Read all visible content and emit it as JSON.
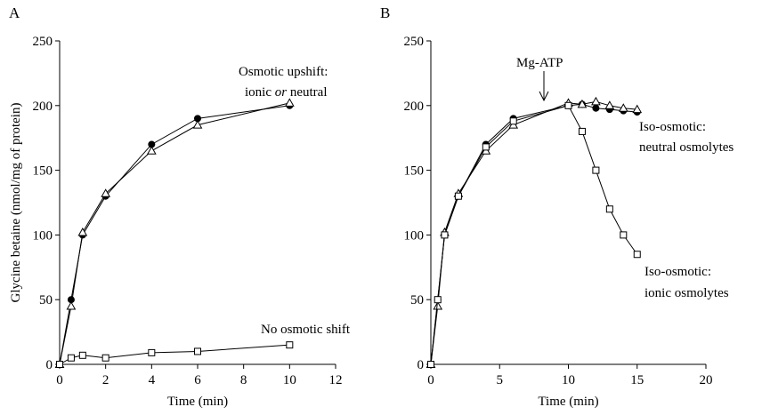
{
  "chart_data": [
    {
      "type": "line",
      "panel": "A",
      "y_label": "Glycine betaine (nmol/mg of protein)",
      "x_label": "Time (min)",
      "x": [
        0,
        0.5,
        1,
        2,
        4,
        6,
        10
      ],
      "xlim": [
        0,
        12
      ],
      "xticks": [
        0,
        2,
        4,
        6,
        8,
        10,
        12
      ],
      "ylim": [
        0,
        250
      ],
      "yticks": [
        0,
        50,
        100,
        150,
        200,
        250
      ],
      "series": [
        {
          "marker": "circle",
          "color": "#000000",
          "values": [
            0,
            50,
            100,
            130,
            170,
            190,
            200
          ]
        },
        {
          "marker": "triangle",
          "color": "#000000",
          "values": [
            0,
            45,
            102,
            132,
            165,
            185,
            202
          ]
        },
        {
          "marker": "square",
          "color": "#000000",
          "values": [
            0,
            5,
            7,
            5,
            9,
            10,
            15
          ]
        }
      ],
      "annotations": [
        [
          "Osmotic upshift:"
        ],
        [
          "ionic ",
          "or",
          " neutral"
        ],
        [
          "No osmotic shift"
        ]
      ]
    },
    {
      "type": "line",
      "panel": "B",
      "x_label": "Time (min)",
      "x": [
        0,
        0.5,
        1,
        2,
        4,
        6,
        10,
        11,
        12,
        13,
        14,
        15
      ],
      "xlim": [
        0,
        20
      ],
      "xticks": [
        0,
        5,
        10,
        15,
        20
      ],
      "ylim": [
        0,
        250
      ],
      "yticks": [
        0,
        50,
        100,
        150,
        200,
        250
      ],
      "series": [
        {
          "marker": "circle",
          "color": "#000000",
          "values": [
            0,
            50,
            100,
            130,
            170,
            190,
            200,
            201,
            198,
            197,
            196,
            195
          ]
        },
        {
          "marker": "triangle",
          "color": "#000000",
          "values": [
            0,
            45,
            102,
            132,
            165,
            185,
            202,
            201,
            203,
            200,
            198,
            197
          ]
        },
        {
          "marker": "square",
          "color": "#000000",
          "values": [
            0,
            50,
            100,
            130,
            168,
            188,
            200,
            180,
            150,
            120,
            100,
            85
          ]
        }
      ],
      "annotations": [
        [
          "Mg-ATP"
        ],
        [
          "Iso-osmotic:"
        ],
        [
          "neutral osmolytes"
        ],
        [
          "Iso-osmotic:"
        ],
        [
          "ionic osmolytes"
        ]
      ]
    }
  ]
}
